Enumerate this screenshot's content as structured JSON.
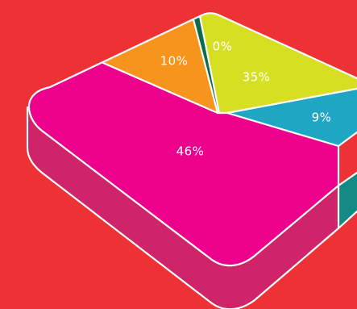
{
  "chart_data": {
    "type": "pie",
    "style": "3d-square-pie",
    "slices": [
      {
        "label": "46%",
        "value": 46,
        "color": "#ec008c",
        "side_color": "#d0246a"
      },
      {
        "label": "10%",
        "value": 10,
        "color": "#f7941d",
        "side_color": "#d97a17"
      },
      {
        "label": "",
        "value": 0.5,
        "color": "#0b6b4a",
        "side_color": "#0a5a3e"
      },
      {
        "label": "0%",
        "value": 0,
        "color": "#d7df23",
        "side_color": "#b5bb1d"
      },
      {
        "label": "35%",
        "value": 35,
        "color": "#d7df23",
        "side_color": "#b5bb1d"
      },
      {
        "label": "9%",
        "value": 9,
        "color": "#1fa6c4",
        "side_color": "#138a83"
      }
    ],
    "background_color": "#ed3134",
    "outline_color": "#ffffff",
    "legend": "none"
  }
}
